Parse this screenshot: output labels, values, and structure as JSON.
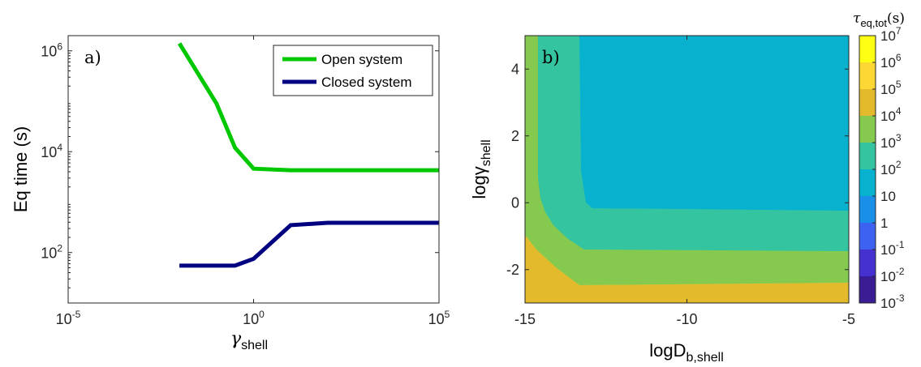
{
  "colors": {
    "open": "#00c800",
    "closed": "#000080",
    "contour_levels": [
      "#fdd835",
      "#e3ba2b",
      "#86c94f",
      "#35c4a0",
      "#08b2ce",
      "#1a8fe8",
      "#3d61f0",
      "#4431d0",
      "#3a1c94"
    ]
  },
  "chart_data": [
    {
      "type": "line",
      "panel_label": "a)",
      "xscale": "log",
      "yscale": "log",
      "xlim": [
        1e-05,
        100000.0
      ],
      "ylim": [
        10,
        2000000.0
      ],
      "xlabel_base": "γ",
      "xlabel_sub": "shell",
      "ylabel": "Eq time (s)",
      "xticks": [
        {
          "base": "10",
          "exp": "-5",
          "value": 1e-05
        },
        {
          "base": "10",
          "exp": "0",
          "value": 1
        },
        {
          "base": "10",
          "exp": "5",
          "value": 100000.0
        }
      ],
      "yticks": [
        {
          "base": "10",
          "exp": "2",
          "value": 100
        },
        {
          "base": "10",
          "exp": "4",
          "value": 10000
        },
        {
          "base": "10",
          "exp": "6",
          "value": 1000000
        }
      ],
      "legend_position": "top-right",
      "series": [
        {
          "name": "Open system",
          "color": "#00c800",
          "x": [
            0.01,
            0.1,
            0.316,
            1,
            10,
            100000
          ],
          "y": [
            1400000,
            90000,
            12000,
            4600,
            4300,
            4300
          ]
        },
        {
          "name": "Closed system",
          "color": "#000080",
          "x": [
            0.01,
            0.316,
            1,
            10,
            100,
            100000
          ],
          "y": [
            55,
            55,
            75,
            350,
            390,
            390
          ]
        }
      ],
      "grid": false
    },
    {
      "type": "heatmap",
      "subtype": "filled contour",
      "panel_label": "b)",
      "xlim": [
        -15,
        -5
      ],
      "ylim": [
        -3,
        5
      ],
      "xticks": [
        "-15",
        "-10",
        "-5"
      ],
      "yticks": [
        "-2",
        "0",
        "2",
        "4"
      ],
      "xlabel_base": "logD",
      "xlabel_sub": "b,shell",
      "ylabel_base": "logγ",
      "ylabel_sub": "shell",
      "regions": [
        {
          "value_range": "10^5-10^6",
          "color": "#fdd835",
          "area": "bottom-left corner"
        },
        {
          "value_range": "10^4-10^5",
          "color": "#e3ba2b",
          "area": "bottom band and left edge"
        },
        {
          "value_range": "10^3-10^4",
          "color": "#86c94f",
          "area": "L-shaped band"
        },
        {
          "value_range": "10^2-10^3",
          "color": "#35c4a0",
          "area": "L-shaped band"
        },
        {
          "value_range": "10-10^2",
          "color": "#08b2ce",
          "area": "upper-right region"
        }
      ],
      "colorbar": {
        "title_base": "τ",
        "title_sub": "eq,tot",
        "title_suffix": "(s)",
        "ticks": [
          {
            "base": "10",
            "exp": "7"
          },
          {
            "base": "10",
            "exp": "6"
          },
          {
            "base": "10",
            "exp": "5"
          },
          {
            "base": "10",
            "exp": "4"
          },
          {
            "base": "10",
            "exp": "3"
          },
          {
            "base": "10",
            "exp": "2"
          },
          {
            "base": "10",
            "exp": ""
          },
          {
            "base": "1",
            "exp": ""
          },
          {
            "base": "10",
            "exp": "-1"
          },
          {
            "base": "10",
            "exp": "-2"
          },
          {
            "base": "10",
            "exp": "-3"
          }
        ],
        "colors": [
          "#ffff14",
          "#fdd835",
          "#e3ba2b",
          "#86c94f",
          "#35c4a0",
          "#08b2ce",
          "#1a8fe8",
          "#3d61f0",
          "#4431d0",
          "#3a1c94"
        ]
      },
      "grid": false
    }
  ]
}
